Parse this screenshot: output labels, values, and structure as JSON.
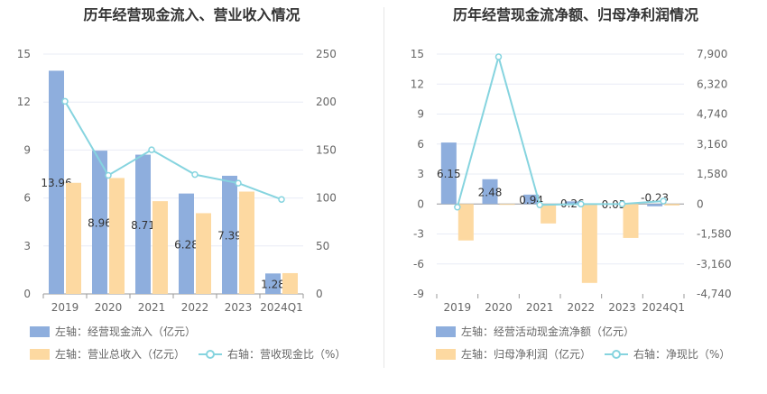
{
  "colors": {
    "blue": "#8eaedd",
    "orange": "#fdd9a1",
    "teal": "#86d4df",
    "grid": "#e8ecf6",
    "axis": "#999999"
  },
  "left": {
    "title": "历年经营现金流入、营业收入情况",
    "legend": {
      "blue": "左轴：经营现金流入（亿元）",
      "orange": "左轴：营业总收入（亿元）",
      "line": "右轴：营收现金比（%）"
    }
  },
  "right": {
    "title": "历年经营现金流净额、归母净利润情况",
    "legend": {
      "blue": "左轴：经营活动现金流净额（亿元）",
      "orange": "左轴：归母净利润（亿元）",
      "line": "右轴：净现比（%）"
    }
  },
  "chart_data": [
    {
      "type": "bar",
      "title": "历年经营现金流入、营业收入情况",
      "categories": [
        "2019",
        "2020",
        "2021",
        "2022",
        "2023",
        "2024Q1"
      ],
      "left_axis": {
        "ticks": [
          "0",
          "3",
          "6",
          "9",
          "12",
          "15"
        ],
        "ylim": [
          0,
          15
        ]
      },
      "right_axis": {
        "ticks": [
          "0",
          "50",
          "100",
          "150",
          "200",
          "250"
        ],
        "ylim": [
          0,
          250
        ]
      },
      "series": [
        {
          "name": "左轴：经营现金流入（亿元）",
          "kind": "bar",
          "axis": "left",
          "color": "#8eaedd",
          "values": [
            13.96,
            8.96,
            8.71,
            6.28,
            7.39,
            1.28
          ],
          "labels": [
            "13.96",
            "8.96",
            "8.71",
            "6.28",
            "7.39",
            "1.28"
          ]
        },
        {
          "name": "左轴：营业总收入（亿元）",
          "kind": "bar",
          "axis": "left",
          "color": "#fdd9a1",
          "values": [
            6.95,
            7.25,
            5.8,
            5.05,
            6.4,
            1.3
          ]
        },
        {
          "name": "右轴：营收现金比（%）",
          "kind": "line",
          "axis": "right",
          "color": "#86d4df",
          "values": [
            200.8,
            123.6,
            150.2,
            124.4,
            115.5,
            98.5
          ]
        }
      ]
    },
    {
      "type": "bar",
      "title": "历年经营现金流净额、归母净利润情况",
      "categories": [
        "2019",
        "2020",
        "2021",
        "2022",
        "2023",
        "2024Q1"
      ],
      "left_axis": {
        "ticks": [
          "-9",
          "-6",
          "-3",
          "0",
          "3",
          "6",
          "9",
          "12",
          "15"
        ],
        "ylim": [
          -9,
          15
        ]
      },
      "right_axis": {
        "ticks": [
          "-4,740",
          "-3,160",
          "-1,580",
          "0",
          "1,580",
          "3,160",
          "4,740",
          "6,320",
          "7,900"
        ],
        "ylim": [
          -4740,
          7900
        ]
      },
      "series": [
        {
          "name": "左轴：经营活动现金流净额（亿元）",
          "kind": "bar",
          "axis": "left",
          "color": "#8eaedd",
          "values": [
            6.15,
            2.48,
            0.94,
            0.26,
            0.03,
            -0.23
          ],
          "labels": [
            "6.15",
            "2.48",
            "0.94",
            "0.26",
            "0.03",
            "-0.23"
          ]
        },
        {
          "name": "左轴：归母净利润（亿元）",
          "kind": "bar",
          "axis": "left",
          "color": "#fdd9a1",
          "values": [
            -3.65,
            -0.05,
            -1.95,
            -7.9,
            -3.4,
            -0.15
          ]
        },
        {
          "name": "右轴：净现比（%）",
          "kind": "line",
          "axis": "right",
          "color": "#86d4df",
          "values": [
            -168,
            7755,
            -48,
            -3,
            -1,
            153
          ]
        }
      ]
    }
  ]
}
